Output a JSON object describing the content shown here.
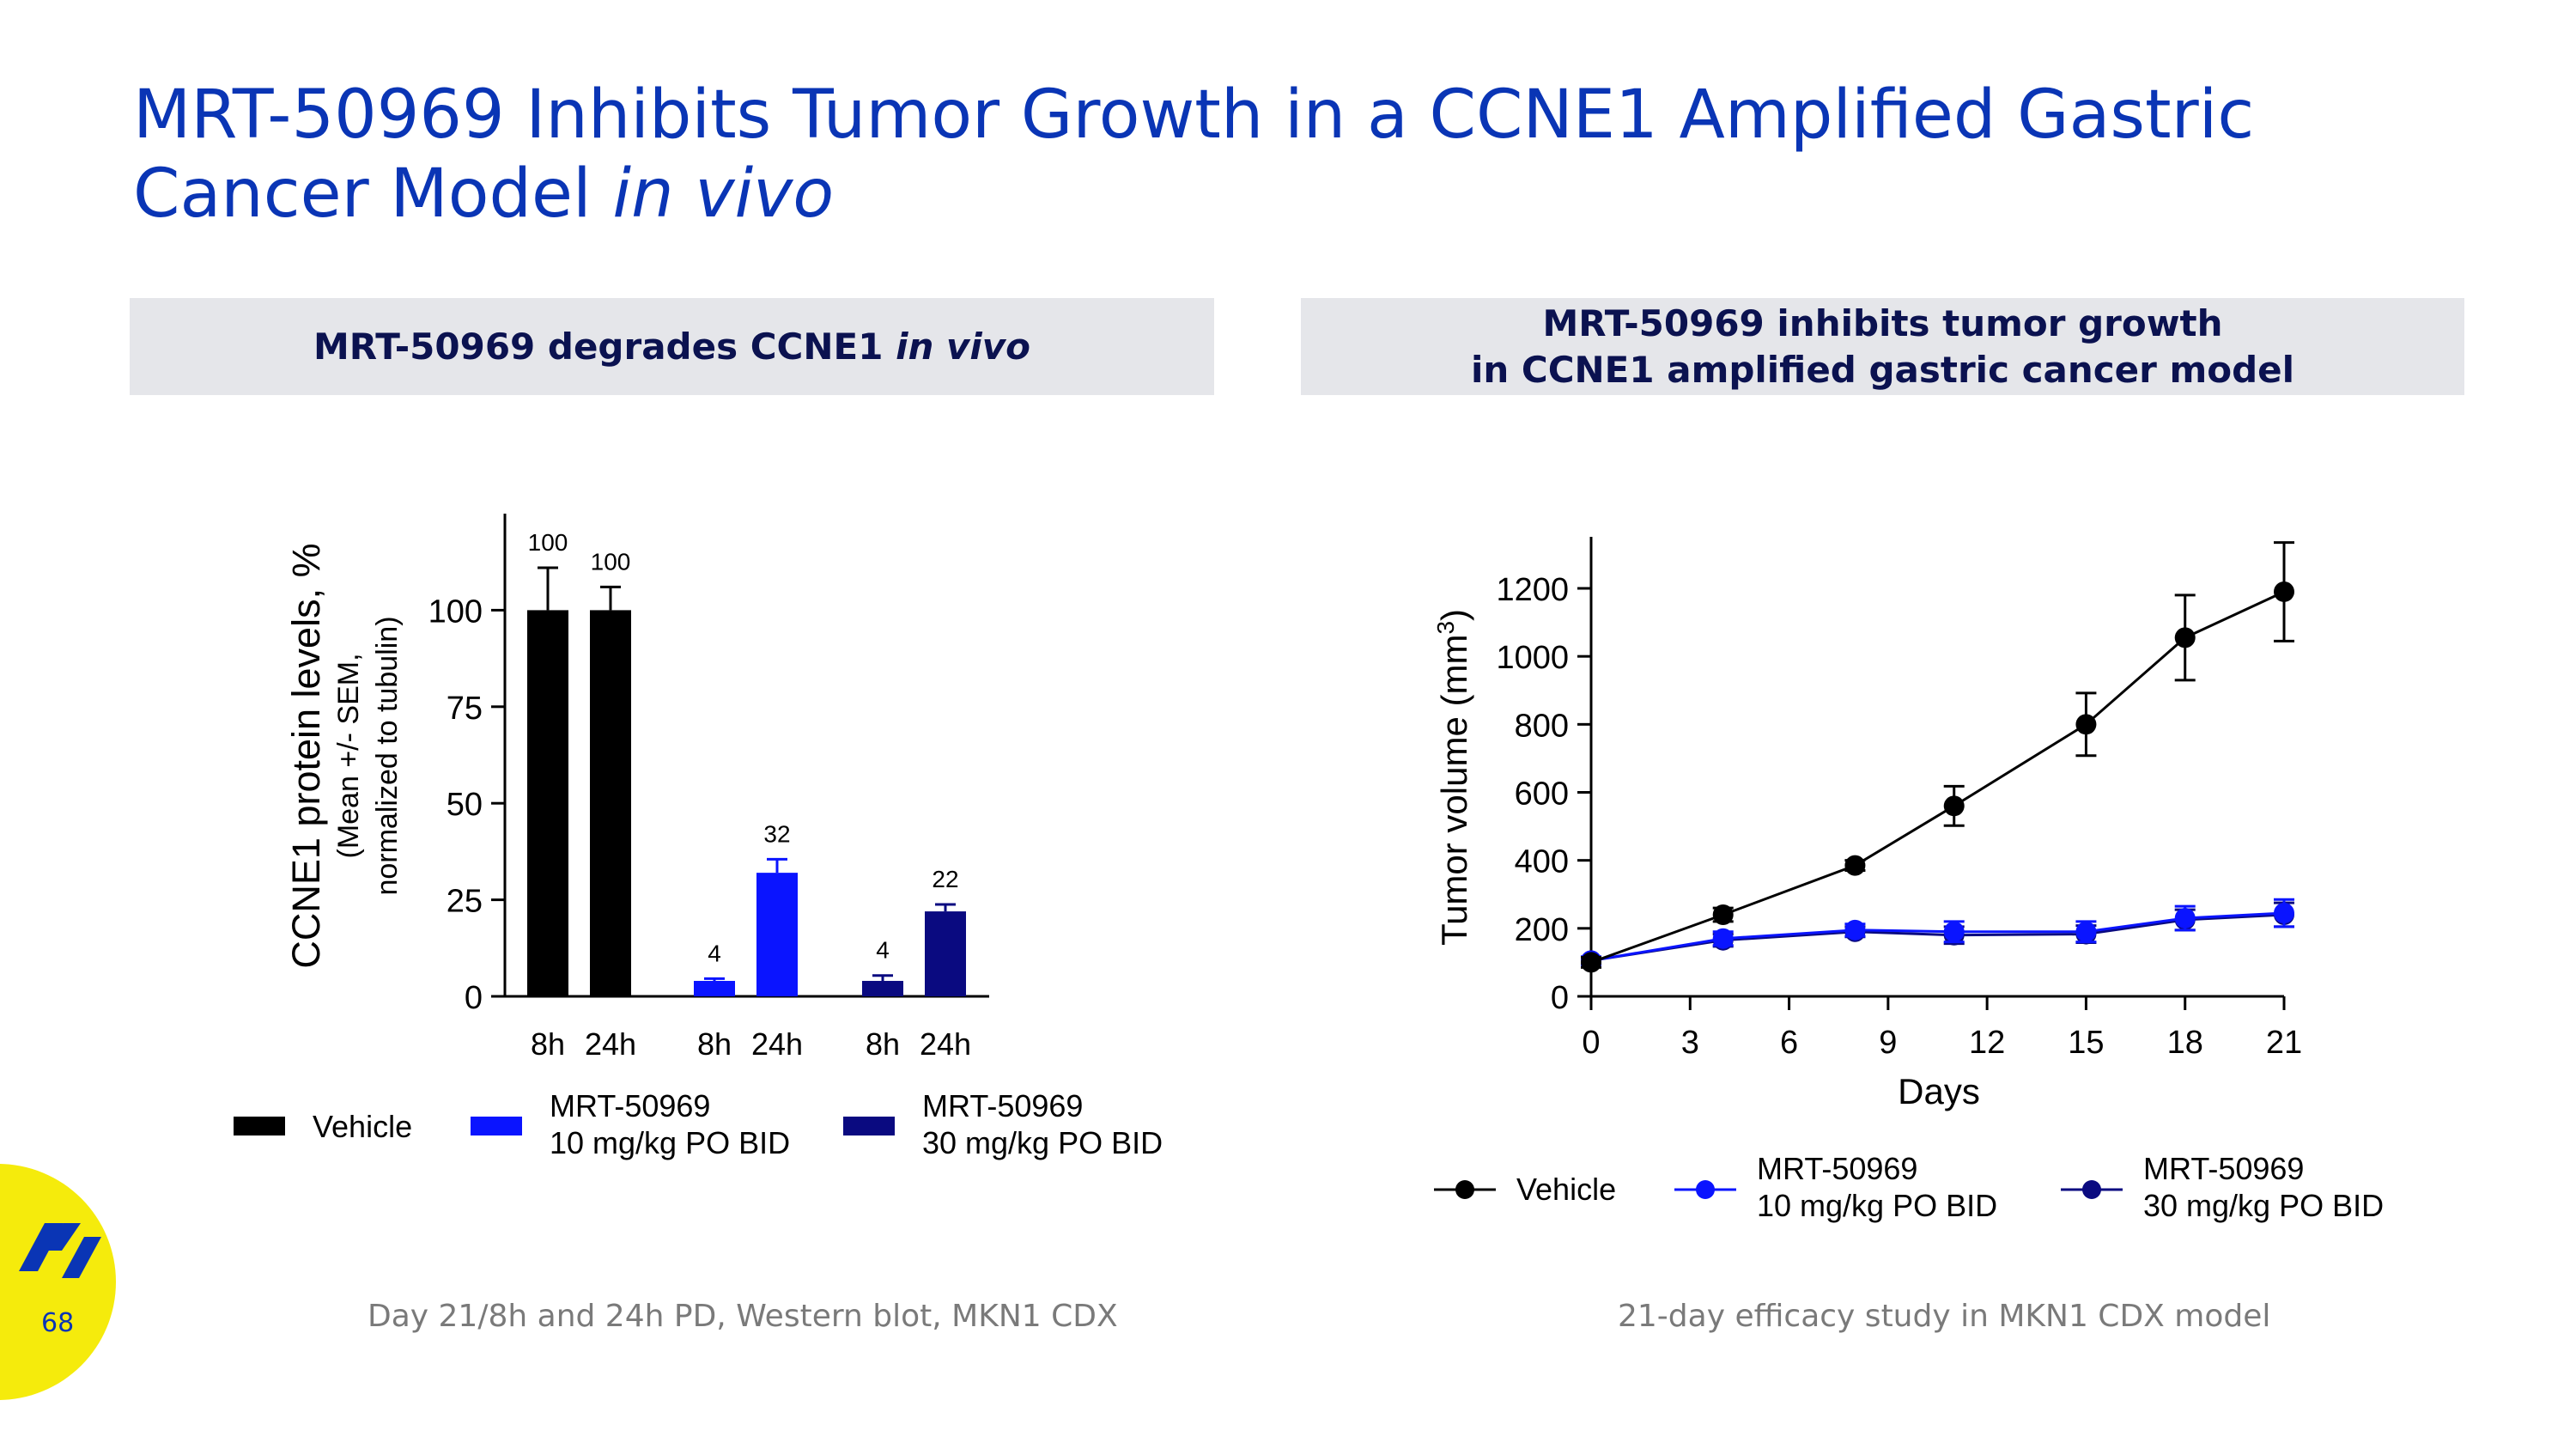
{
  "slide": {
    "title_main": "MRT-50969 Inhibits Tumor Growth in a CCNE1 Amplified Gastric Cancer Model ",
    "title_italic": "in vivo",
    "left_header_main": "MRT-50969 degrades CCNE1 ",
    "left_header_italic": "in vivo",
    "right_header_line1": "MRT-50969 inhibits tumor growth",
    "right_header_line2": "in CCNE1 amplified gastric cancer model",
    "left_footnote": "Day 21/8h and 24h PD, Western blot, MKN1 CDX",
    "right_footnote": "21-day efficacy study in MKN1 CDX model",
    "page_number": "68",
    "colors": {
      "title": "#0a35b5",
      "header_bg": "#e5e6ea",
      "header_text": "#0b1250",
      "badge": "#f5eb0c",
      "logo": "#0a35b5"
    }
  },
  "chart_data": [
    {
      "type": "bar",
      "ylabel": "CCNE1 protein levels, %",
      "ylabel_sub1": "(Mean +/- SEM,",
      "ylabel_sub2": "normalized to tubulin)",
      "ylim": [
        0,
        125
      ],
      "yticks": [
        0,
        25,
        50,
        75,
        100
      ],
      "categories": [
        "8h",
        "24h",
        "8h",
        "24h",
        "8h",
        "24h"
      ],
      "groups": [
        "Vehicle",
        "MRT-50969 10 mg/kg PO BID",
        "MRT-50969 30 mg/kg PO BID"
      ],
      "values": [
        100,
        100,
        4,
        32,
        4,
        22
      ],
      "errors": [
        11,
        6,
        0.6,
        3.5,
        1.4,
        1.8
      ],
      "labels": [
        "100",
        "100",
        "4",
        "32",
        "4",
        "22"
      ],
      "group_index": [
        0,
        0,
        1,
        1,
        2,
        2
      ],
      "colors": [
        "#000000",
        "#0a14ff",
        "#0a0a80"
      ],
      "legend": [
        {
          "line1": "Vehicle",
          "line2": ""
        },
        {
          "line1": "MRT-50969",
          "line2": "10 mg/kg PO BID"
        },
        {
          "line1": "MRT-50969",
          "line2": "30 mg/kg PO BID"
        }
      ]
    },
    {
      "type": "line",
      "xlabel": "Days",
      "ylabel": "Tumor volume (mm",
      "ylabel_sup": "3",
      "ylabel_end": ")",
      "xlim": [
        0,
        21
      ],
      "ylim": [
        0,
        1350
      ],
      "xticks": [
        0,
        3,
        6,
        9,
        12,
        15,
        18,
        21
      ],
      "yticks": [
        0,
        200,
        400,
        600,
        800,
        1000,
        1200
      ],
      "x": [
        0,
        4,
        8,
        11,
        15,
        18,
        21
      ],
      "series": [
        {
          "name": "Vehicle",
          "legend_line1": "Vehicle",
          "legend_line2": "",
          "color": "#000000",
          "values": [
            100,
            240,
            385,
            560,
            800,
            1055,
            1190
          ],
          "errors": [
            15,
            20,
            15,
            58,
            92,
            125,
            145
          ]
        },
        {
          "name": "MRT-50969 10 mg/kg PO BID",
          "legend_line1": "MRT-50969",
          "legend_line2": "10 mg/kg PO BID",
          "color": "#0a14ff",
          "values": [
            105,
            170,
            195,
            190,
            190,
            230,
            245
          ],
          "errors": [
            12,
            20,
            18,
            30,
            30,
            35,
            40
          ]
        },
        {
          "name": "MRT-50969 30 mg/kg PO BID",
          "legend_line1": "MRT-50969",
          "legend_line2": "30 mg/kg PO BID",
          "color": "#0a0a80",
          "values": [
            105,
            165,
            190,
            180,
            183,
            225,
            240
          ],
          "errors": [
            10,
            18,
            15,
            25,
            25,
            30,
            35
          ]
        }
      ]
    }
  ]
}
